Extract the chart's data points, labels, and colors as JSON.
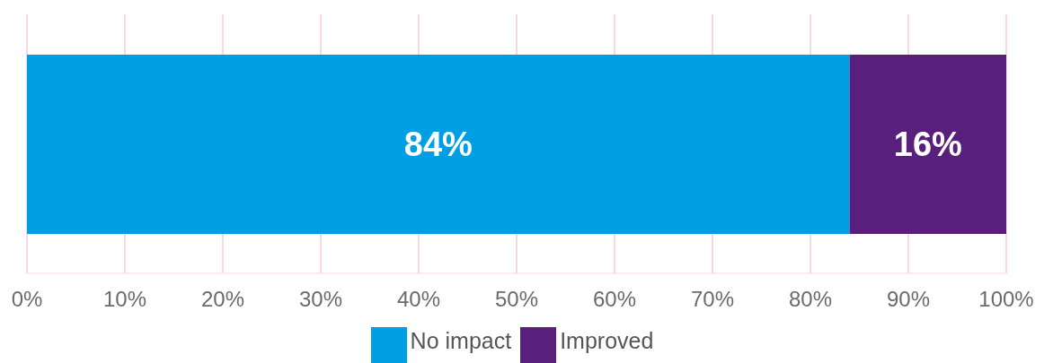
{
  "chart_data": {
    "type": "bar",
    "orientation": "horizontal",
    "stacked": true,
    "categories": [
      null
    ],
    "series": [
      {
        "name": "No impact",
        "color": "#009fe3",
        "values": [
          84
        ],
        "value_labels": [
          "84%"
        ]
      },
      {
        "name": "Improved",
        "color": "#58207c",
        "values": [
          16
        ],
        "value_labels": [
          "16%"
        ]
      }
    ],
    "xlim": [
      0,
      100
    ],
    "xticks": [
      {
        "value": 0,
        "label": "0%"
      },
      {
        "value": 10,
        "label": "10%"
      },
      {
        "value": 20,
        "label": "20%"
      },
      {
        "value": 30,
        "label": "30%"
      },
      {
        "value": 40,
        "label": "40%"
      },
      {
        "value": 50,
        "label": "50%"
      },
      {
        "value": 60,
        "label": "60%"
      },
      {
        "value": 70,
        "label": "70%"
      },
      {
        "value": 80,
        "label": "80%"
      },
      {
        "value": 90,
        "label": "90%"
      },
      {
        "value": 100,
        "label": "100%"
      }
    ],
    "grid": "x",
    "legend": "bottom"
  }
}
